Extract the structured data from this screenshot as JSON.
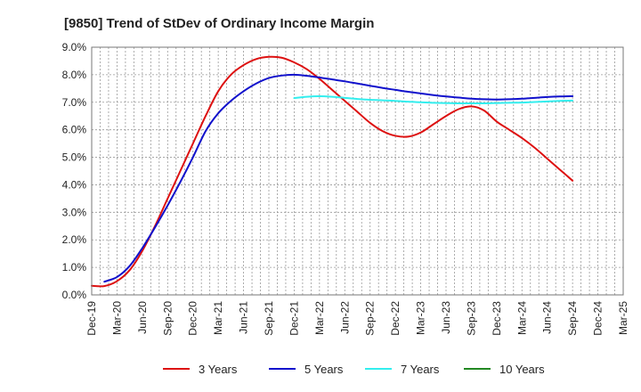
{
  "chart_data": {
    "type": "line",
    "title": "[9850]  Trend of StDev of Ordinary Income Margin",
    "xlabel": "",
    "ylabel": "",
    "x_ticks": [
      "Dec-19",
      "Mar-20",
      "Jun-20",
      "Sep-20",
      "Dec-20",
      "Mar-21",
      "Jun-21",
      "Sep-21",
      "Dec-21",
      "Mar-22",
      "Jun-22",
      "Sep-22",
      "Dec-22",
      "Mar-23",
      "Jun-23",
      "Sep-23",
      "Dec-23",
      "Mar-24",
      "Jun-24",
      "Sep-24",
      "Dec-24",
      "Mar-25"
    ],
    "y_ticks": [
      "0.0%",
      "1.0%",
      "2.0%",
      "3.0%",
      "4.0%",
      "5.0%",
      "6.0%",
      "7.0%",
      "8.0%",
      "9.0%"
    ],
    "ylim": [
      0,
      9
    ],
    "grid": true,
    "legend_position": "bottom",
    "series": [
      {
        "name": "3 Years",
        "color": "#dd1111",
        "points": [
          [
            0,
            0.33
          ],
          [
            0.5,
            0.32
          ],
          [
            1,
            0.5
          ],
          [
            1.5,
            0.9
          ],
          [
            2,
            1.6
          ],
          [
            2.5,
            2.5
          ],
          [
            3,
            3.5
          ],
          [
            3.5,
            4.5
          ],
          [
            4,
            5.5
          ],
          [
            4.5,
            6.5
          ],
          [
            5,
            7.4
          ],
          [
            5.5,
            8.0
          ],
          [
            6,
            8.35
          ],
          [
            6.5,
            8.57
          ],
          [
            7,
            8.65
          ],
          [
            7.5,
            8.62
          ],
          [
            8,
            8.45
          ],
          [
            8.5,
            8.2
          ],
          [
            9,
            7.85
          ],
          [
            9.5,
            7.45
          ],
          [
            10,
            7.05
          ],
          [
            10.5,
            6.65
          ],
          [
            11,
            6.25
          ],
          [
            11.5,
            5.95
          ],
          [
            12,
            5.78
          ],
          [
            12.5,
            5.75
          ],
          [
            13,
            5.9
          ],
          [
            13.5,
            6.2
          ],
          [
            14,
            6.5
          ],
          [
            14.5,
            6.75
          ],
          [
            15,
            6.85
          ],
          [
            15.5,
            6.7
          ],
          [
            16,
            6.3
          ],
          [
            16.5,
            6.0
          ],
          [
            17,
            5.7
          ],
          [
            17.5,
            5.35
          ],
          [
            18,
            4.95
          ],
          [
            18.5,
            4.55
          ],
          [
            19,
            4.15
          ]
        ]
      },
      {
        "name": "5 Years",
        "color": "#1111cc",
        "points": [
          [
            0.5,
            0.48
          ],
          [
            1,
            0.65
          ],
          [
            1.5,
            1.05
          ],
          [
            2,
            1.7
          ],
          [
            2.5,
            2.45
          ],
          [
            3,
            3.25
          ],
          [
            3.5,
            4.1
          ],
          [
            4,
            5.0
          ],
          [
            4.5,
            5.95
          ],
          [
            5,
            6.6
          ],
          [
            5.5,
            7.05
          ],
          [
            6,
            7.4
          ],
          [
            6.5,
            7.68
          ],
          [
            7,
            7.88
          ],
          [
            7.5,
            7.97
          ],
          [
            8,
            8.0
          ],
          [
            8.5,
            7.96
          ],
          [
            9,
            7.9
          ],
          [
            9.5,
            7.83
          ],
          [
            10,
            7.76
          ],
          [
            10.5,
            7.68
          ],
          [
            11,
            7.6
          ],
          [
            11.5,
            7.52
          ],
          [
            12,
            7.45
          ],
          [
            12.5,
            7.38
          ],
          [
            13,
            7.32
          ],
          [
            13.5,
            7.26
          ],
          [
            14,
            7.21
          ],
          [
            14.5,
            7.17
          ],
          [
            15,
            7.13
          ],
          [
            15.5,
            7.11
          ],
          [
            16,
            7.1
          ],
          [
            16.5,
            7.11
          ],
          [
            17,
            7.13
          ],
          [
            17.5,
            7.16
          ],
          [
            18,
            7.19
          ],
          [
            18.5,
            7.21
          ],
          [
            19,
            7.22
          ]
        ]
      },
      {
        "name": "7 Years",
        "color": "#33eeee",
        "points": [
          [
            8,
            7.15
          ],
          [
            8.5,
            7.2
          ],
          [
            9,
            7.22
          ],
          [
            9.5,
            7.2
          ],
          [
            10,
            7.16
          ],
          [
            10.5,
            7.12
          ],
          [
            11,
            7.09
          ],
          [
            11.5,
            7.07
          ],
          [
            12,
            7.05
          ],
          [
            12.5,
            7.02
          ],
          [
            13,
            7.0
          ],
          [
            13.5,
            6.98
          ],
          [
            14,
            6.97
          ],
          [
            14.5,
            6.96
          ],
          [
            15,
            6.96
          ],
          [
            15.5,
            6.96
          ],
          [
            16,
            6.97
          ],
          [
            16.5,
            6.98
          ],
          [
            17,
            6.99
          ],
          [
            17.5,
            7.01
          ],
          [
            18,
            7.03
          ],
          [
            18.5,
            7.05
          ],
          [
            19,
            7.06
          ]
        ]
      },
      {
        "name": "10 Years",
        "color": "#228822",
        "points": []
      }
    ]
  }
}
